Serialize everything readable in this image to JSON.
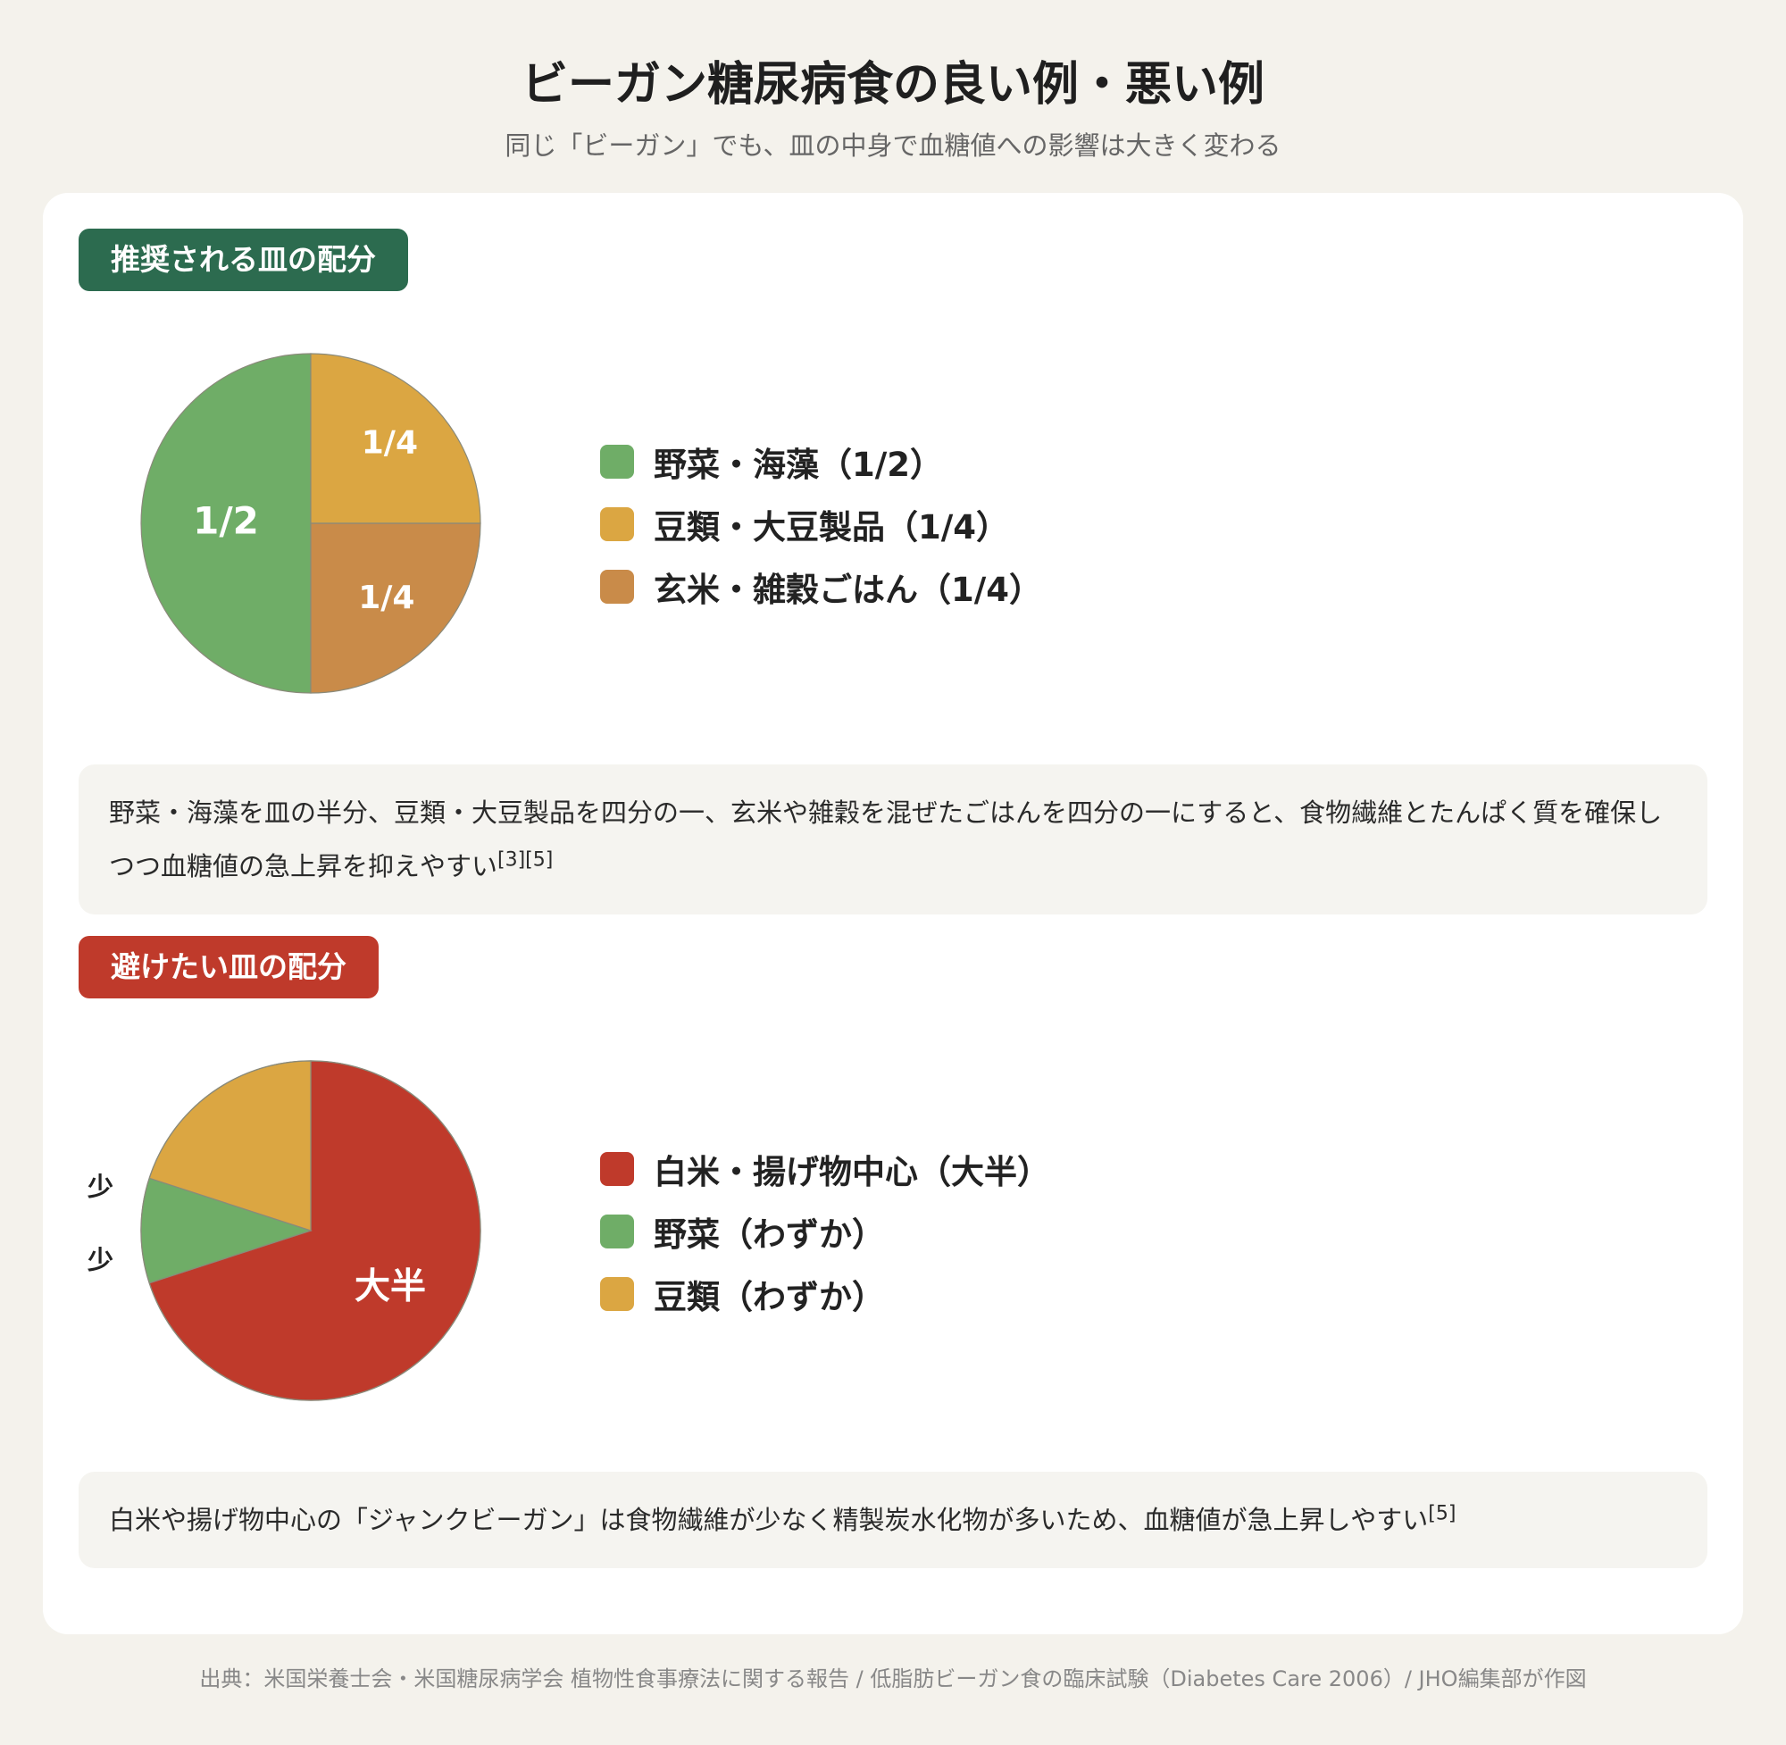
{
  "title": "ビーガン糖尿病食の良い例・悪い例",
  "subtitle": "同じ「ビーガン」でも、皿の中身で血糖値への影響は大きく変わる",
  "footer": "出典：米国栄養士会・米国糖尿病学会 植物性食事療法に関する報告 / 低脂肪ビーガン食の臨床試験（Diabetes Care 2006）/ JHO編集部が作図",
  "colors": {
    "green": "#6fad67",
    "yellow": "#dba642",
    "orange": "#c98b49",
    "red": "#bf3a2b",
    "good_tag": "#2c6b4f",
    "bad_tag": "#bf3a2b"
  },
  "good": {
    "tag": "推奨される皿の配分",
    "note": "野菜・海藻を皿の半分、豆類・大豆製品を四分の一、玄米や雑穀を混ぜたごはんを四分の一にすると、食物繊維とたんぱく質を確保しつつ血糖値の急上昇を抑えやすい",
    "note_refs": "[3][5]"
  },
  "bad": {
    "tag": "避けたい皿の配分",
    "note": "白米や揚げ物中心の「ジャンクビーガン」は食物繊維が少なく精製炭水化物が多いため、血糖値が急上昇しやすい",
    "note_refs": "[5]"
  },
  "chart_data": [
    {
      "type": "pie",
      "title": "推奨される皿の配分",
      "series": [
        {
          "label": "野菜・海藻（1/2）",
          "slice_label": "1/2",
          "value": 0.5,
          "color": "#6fad67"
        },
        {
          "label": "豆類・大豆製品（1/4）",
          "slice_label": "1/4",
          "value": 0.25,
          "color": "#dba642"
        },
        {
          "label": "玄米・雑穀ごはん（1/4）",
          "slice_label": "1/4",
          "value": 0.25,
          "color": "#c98b49"
        }
      ]
    },
    {
      "type": "pie",
      "title": "避けたい皿の配分",
      "series": [
        {
          "label": "白米・揚げ物中心（大半）",
          "slice_label": "大半",
          "value": 0.7,
          "color": "#bf3a2b"
        },
        {
          "label": "野菜（わずか）",
          "slice_label": "少",
          "value": 0.1,
          "color": "#6fad67"
        },
        {
          "label": "豆類（わずか）",
          "slice_label": "少",
          "value": 0.2,
          "color": "#dba642"
        }
      ]
    }
  ]
}
